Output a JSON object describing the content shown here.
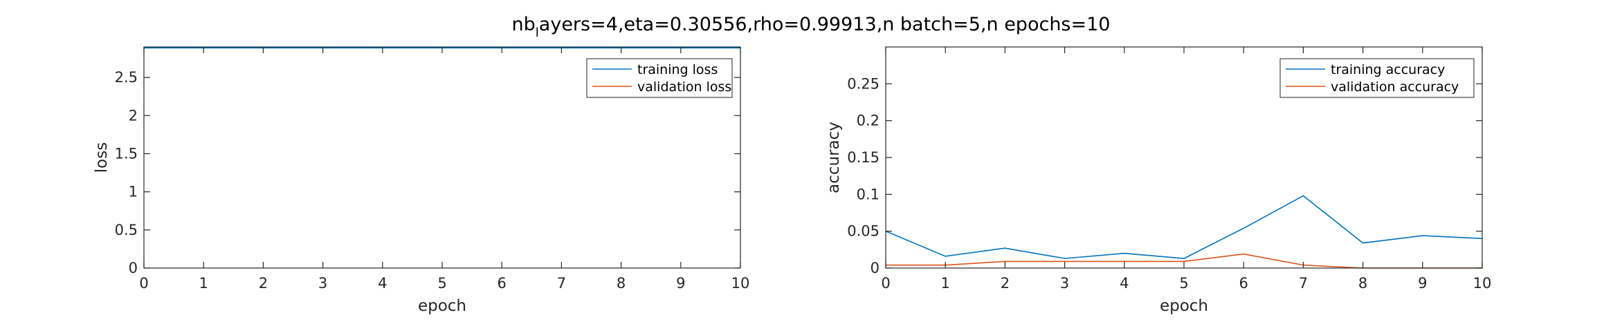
{
  "figure": {
    "title_main": "nb",
    "title_sub": "l",
    "title_rest": "ayers=4,eta=0.30556,rho=0.99913,n batch=5,n epochs=10"
  },
  "colors": {
    "training": "#0072BD",
    "validation": "#D95319",
    "axis": "#262626"
  },
  "chart_data": [
    {
      "type": "line",
      "xlabel": "epoch",
      "ylabel": "loss",
      "xlim": [
        0,
        10
      ],
      "ylim": [
        0,
        2.9
      ],
      "xticks": [
        0,
        1,
        2,
        3,
        4,
        5,
        6,
        7,
        8,
        9,
        10
      ],
      "yticks": [
        0,
        0.5,
        1,
        1.5,
        2,
        2.5
      ],
      "ytick_labels": [
        "0",
        "0.5",
        "1",
        "1.5",
        "2",
        "2.5"
      ],
      "legend_position": "top-right",
      "grid": false,
      "x": [
        0,
        1,
        2,
        3,
        4,
        5,
        6,
        7,
        8,
        9,
        10
      ],
      "series": [
        {
          "name": "training loss",
          "color": "#0072BD",
          "values": [
            2.888,
            2.888,
            2.888,
            2.888,
            2.888,
            2.888,
            2.888,
            2.888,
            2.888,
            2.888,
            2.888
          ]
        },
        {
          "name": "validation loss",
          "color": "#D95319",
          "values": [
            null,
            null,
            null,
            null,
            null,
            null,
            null,
            null,
            null,
            null,
            null
          ]
        }
      ]
    },
    {
      "type": "line",
      "xlabel": "epoch",
      "ylabel": "accuracy",
      "xlim": [
        0,
        10
      ],
      "ylim": [
        0,
        0.3
      ],
      "xticks": [
        0,
        1,
        2,
        3,
        4,
        5,
        6,
        7,
        8,
        9,
        10
      ],
      "yticks": [
        0,
        0.05,
        0.1,
        0.15,
        0.2,
        0.25
      ],
      "ytick_labels": [
        "0",
        "0.05",
        "0.1",
        "0.15",
        "0.2",
        "0.25"
      ],
      "legend_position": "top-right",
      "grid": false,
      "x": [
        0,
        1,
        2,
        3,
        4,
        5,
        6,
        7,
        8,
        9,
        10
      ],
      "series": [
        {
          "name": "training accuracy",
          "color": "#0072BD",
          "values": [
            0.05,
            0.016,
            0.027,
            0.013,
            0.02,
            0.013,
            0.054,
            0.098,
            0.034,
            0.044,
            0.04
          ]
        },
        {
          "name": "validation accuracy",
          "color": "#D95319",
          "values": [
            0.004,
            0.004,
            0.009,
            0.009,
            0.009,
            0.009,
            0.019,
            0.004,
            0,
            0,
            0
          ]
        }
      ]
    }
  ]
}
